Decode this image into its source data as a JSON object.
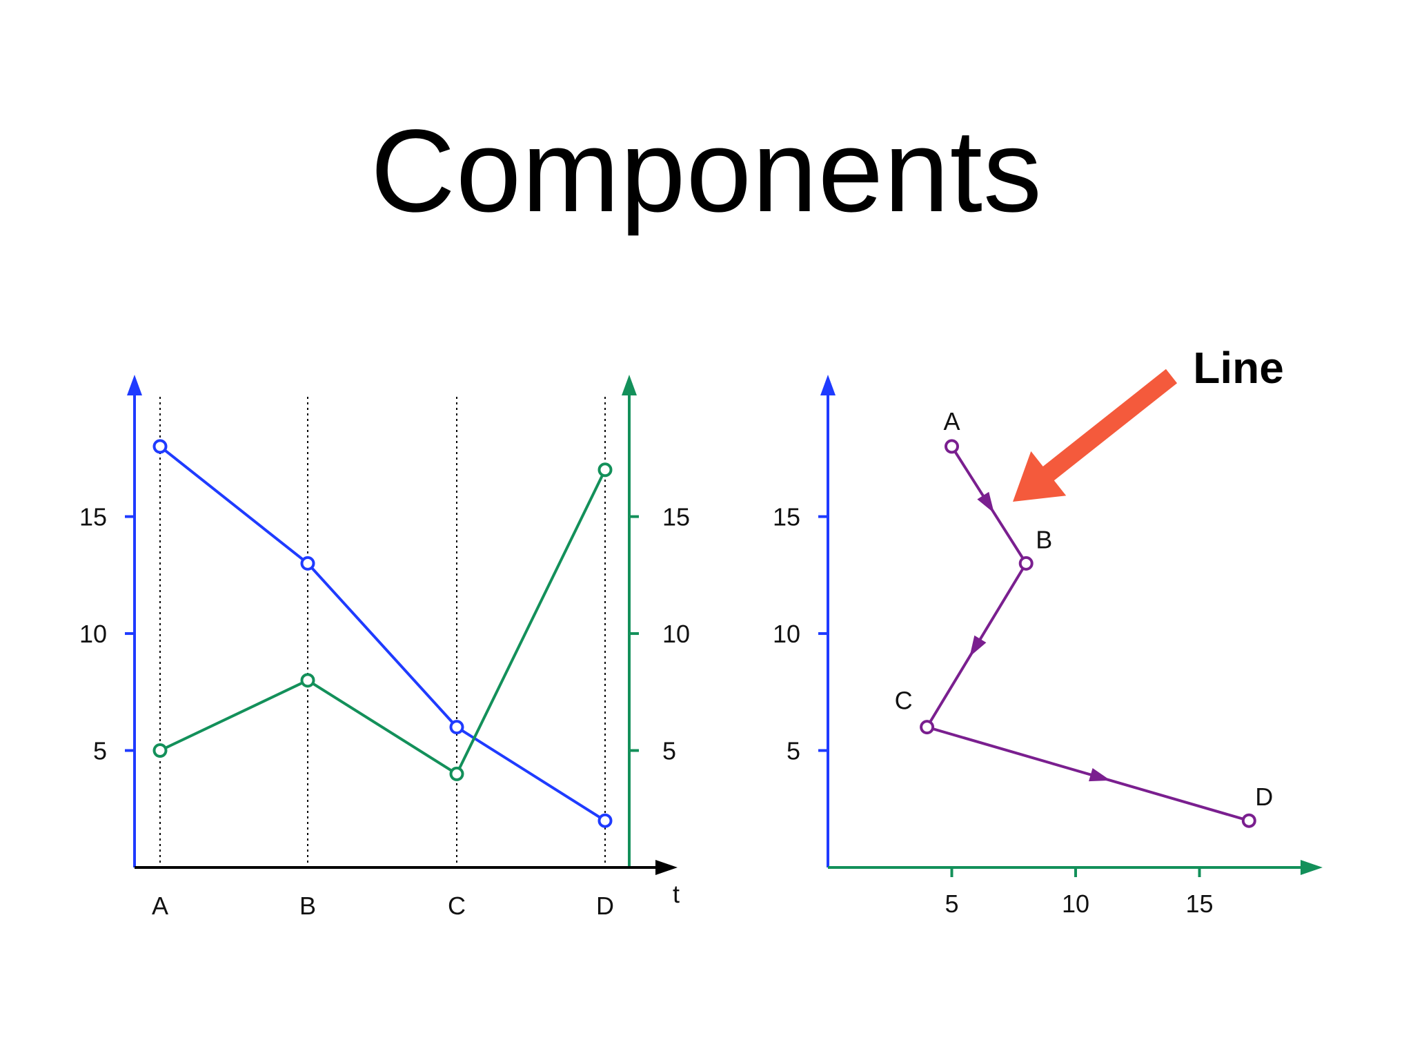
{
  "title": "Components",
  "colors": {
    "blue": "#1f3bff",
    "green": "#13905a",
    "purple": "#7a1f8f",
    "arrow": "#f45a3c",
    "axis": "#000000"
  },
  "annotation": "Line",
  "chart_data": [
    {
      "type": "line",
      "categories": [
        "A",
        "B",
        "C",
        "D"
      ],
      "xlabel": "t",
      "series": [
        {
          "color": "#1f3bff",
          "axis": "left",
          "values": [
            18,
            13,
            6,
            2
          ]
        },
        {
          "color": "#13905a",
          "axis": "right",
          "values": [
            5,
            8,
            4,
            17
          ]
        }
      ],
      "left_axis": {
        "ticks": [
          5,
          10,
          15
        ],
        "tick_labels": [
          "5",
          "10",
          "15"
        ],
        "ylim": [
          0,
          19
        ]
      },
      "right_axis": {
        "ticks": [
          5,
          10,
          15
        ],
        "tick_labels": [
          "5",
          "10",
          "15"
        ],
        "ylim": [
          0,
          19
        ]
      },
      "grid": "vertical dotted at categories"
    },
    {
      "type": "line",
      "points": [
        {
          "label": "A",
          "x": 5,
          "y": 18
        },
        {
          "label": "B",
          "x": 8,
          "y": 13
        },
        {
          "label": "C",
          "x": 4,
          "y": 6
        },
        {
          "label": "D",
          "x": 17,
          "y": 2
        }
      ],
      "x_axis": {
        "ticks": [
          5,
          10,
          15
        ],
        "tick_labels": [
          "5",
          "10",
          "15"
        ],
        "xlim": [
          0,
          19.5
        ]
      },
      "y_axis": {
        "ticks": [
          5,
          10,
          15
        ],
        "tick_labels": [
          "5",
          "10",
          "15"
        ],
        "ylim": [
          0,
          19
        ]
      },
      "directed": true
    }
  ]
}
